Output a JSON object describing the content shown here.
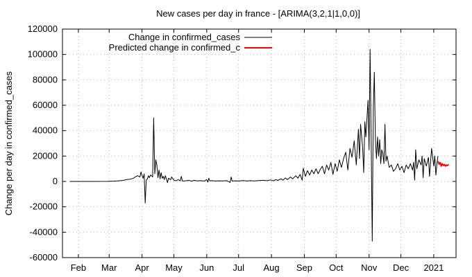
{
  "chart_data": {
    "type": "line",
    "title": "New cases per day in france -  [ARIMA(3,2,1|1,0,0)]",
    "xlabel": "",
    "ylabel": "Change per day in confirmed_cases",
    "ylim": [
      -60000,
      120000
    ],
    "y_ticks": [
      -60000,
      -40000,
      -20000,
      0,
      20000,
      40000,
      60000,
      80000,
      100000,
      120000
    ],
    "x_ticks": [
      "Feb",
      "Mar",
      "Apr",
      "May",
      "Jun",
      "Jul",
      "Aug",
      "Sep",
      "Oct",
      "Nov",
      "Dec",
      "2021"
    ],
    "grid": true,
    "legend_position": "top-left",
    "series": [
      {
        "name": "Change in confirmed_cases",
        "color": "#000000",
        "points": [
          [
            "2020-01-24",
            0
          ],
          [
            "2020-02-15",
            0
          ],
          [
            "2020-02-29",
            50
          ],
          [
            "2020-03-05",
            200
          ],
          [
            "2020-03-10",
            500
          ],
          [
            "2020-03-14",
            800
          ],
          [
            "2020-03-18",
            1500
          ],
          [
            "2020-03-21",
            1800
          ],
          [
            "2020-03-24",
            2500
          ],
          [
            "2020-03-26",
            3800
          ],
          [
            "2020-03-28",
            4500
          ],
          [
            "2020-03-30",
            3500
          ],
          [
            "2020-03-31",
            7500
          ],
          [
            "2020-04-01",
            4800
          ],
          [
            "2020-04-02",
            2500
          ],
          [
            "2020-04-03",
            6000
          ],
          [
            "2020-04-04",
            -17000
          ],
          [
            "2020-04-05",
            1000
          ],
          [
            "2020-04-06",
            2000
          ],
          [
            "2020-04-07",
            4500
          ],
          [
            "2020-04-08",
            3000
          ],
          [
            "2020-04-09",
            5000
          ],
          [
            "2020-04-10",
            4500
          ],
          [
            "2020-04-11",
            3500
          ],
          [
            "2020-04-12",
            50000
          ],
          [
            "2020-04-13",
            6000
          ],
          [
            "2020-04-14",
            17000
          ],
          [
            "2020-04-15",
            13000
          ],
          [
            "2020-04-16",
            3000
          ],
          [
            "2020-04-17",
            9000
          ],
          [
            "2020-04-18",
            2000
          ],
          [
            "2020-04-19",
            7000
          ],
          [
            "2020-04-20",
            2500
          ],
          [
            "2020-04-21",
            4000
          ],
          [
            "2020-04-22",
            1500
          ],
          [
            "2020-04-23",
            4500
          ],
          [
            "2020-04-24",
            2000
          ],
          [
            "2020-04-25",
            -1000
          ],
          [
            "2020-04-26",
            2500
          ],
          [
            "2020-04-28",
            1500
          ],
          [
            "2020-04-29",
            3500
          ],
          [
            "2020-05-01",
            1000
          ],
          [
            "2020-05-03",
            500
          ],
          [
            "2020-05-05",
            1500
          ],
          [
            "2020-05-07",
            500
          ],
          [
            "2020-05-08",
            4000
          ],
          [
            "2020-05-09",
            300
          ],
          [
            "2020-05-12",
            500
          ],
          [
            "2020-05-15",
            800
          ],
          [
            "2020-05-18",
            200
          ],
          [
            "2020-05-20",
            900
          ],
          [
            "2020-05-23",
            400
          ],
          [
            "2020-05-26",
            600
          ],
          [
            "2020-05-30",
            300
          ],
          [
            "2020-06-01",
            1500
          ],
          [
            "2020-06-02",
            -500
          ],
          [
            "2020-06-03",
            2500
          ],
          [
            "2020-06-04",
            400
          ],
          [
            "2020-06-06",
            600
          ],
          [
            "2020-06-09",
            300
          ],
          [
            "2020-06-12",
            500
          ],
          [
            "2020-06-16",
            400
          ],
          [
            "2020-06-20",
            600
          ],
          [
            "2020-06-23",
            -800
          ],
          [
            "2020-06-24",
            3500
          ],
          [
            "2020-06-25",
            300
          ],
          [
            "2020-06-28",
            500
          ],
          [
            "2020-07-02",
            400
          ],
          [
            "2020-07-05",
            700
          ],
          [
            "2020-07-09",
            300
          ],
          [
            "2020-07-12",
            600
          ],
          [
            "2020-07-16",
            400
          ],
          [
            "2020-07-20",
            700
          ],
          [
            "2020-07-24",
            900
          ],
          [
            "2020-07-28",
            600
          ],
          [
            "2020-07-31",
            1200
          ],
          [
            "2020-08-03",
            500
          ],
          [
            "2020-08-05",
            1500
          ],
          [
            "2020-08-07",
            800
          ],
          [
            "2020-08-10",
            2000
          ],
          [
            "2020-08-12",
            1000
          ],
          [
            "2020-08-14",
            2800
          ],
          [
            "2020-08-16",
            1500
          ],
          [
            "2020-08-19",
            3500
          ],
          [
            "2020-08-21",
            2000
          ],
          [
            "2020-08-24",
            4500
          ],
          [
            "2020-08-26",
            2500
          ],
          [
            "2020-08-28",
            5500
          ],
          [
            "2020-08-30",
            1000
          ],
          [
            "2020-08-31",
            10500
          ],
          [
            "2020-09-02",
            4000
          ],
          [
            "2020-09-04",
            8500
          ],
          [
            "2020-09-06",
            5000
          ],
          [
            "2020-09-08",
            9000
          ],
          [
            "2020-09-10",
            6000
          ],
          [
            "2020-09-12",
            10000
          ],
          [
            "2020-09-14",
            6000
          ],
          [
            "2020-09-16",
            9500
          ],
          [
            "2020-09-18",
            12000
          ],
          [
            "2020-09-20",
            6000
          ],
          [
            "2020-09-22",
            13000
          ],
          [
            "2020-09-24",
            9000
          ],
          [
            "2020-09-26",
            15000
          ],
          [
            "2020-09-28",
            5500
          ],
          [
            "2020-09-30",
            14000
          ],
          [
            "2020-10-02",
            8000
          ],
          [
            "2020-10-04",
            17000
          ],
          [
            "2020-10-06",
            11000
          ],
          [
            "2020-10-08",
            18000
          ],
          [
            "2020-10-10",
            23000
          ],
          [
            "2020-10-12",
            9000
          ],
          [
            "2020-10-14",
            26000
          ],
          [
            "2020-10-16",
            19000
          ],
          [
            "2020-10-18",
            32000
          ],
          [
            "2020-10-20",
            13000
          ],
          [
            "2020-10-22",
            41000
          ],
          [
            "2020-10-23",
            18000
          ],
          [
            "2020-10-24",
            45000
          ],
          [
            "2020-10-26",
            26000
          ],
          [
            "2020-10-27",
            7000
          ],
          [
            "2020-10-28",
            47000
          ],
          [
            "2020-10-29",
            35000
          ],
          [
            "2020-10-30",
            49000
          ],
          [
            "2020-10-31",
            64000
          ],
          [
            "2020-11-01",
            25000
          ],
          [
            "2020-11-02",
            104000
          ],
          [
            "2020-11-03",
            35000
          ],
          [
            "2020-11-04",
            -47000
          ],
          [
            "2020-11-05",
            58000
          ],
          [
            "2020-11-06",
            86000
          ],
          [
            "2020-11-07",
            33000
          ],
          [
            "2020-11-08",
            18000
          ],
          [
            "2020-11-09",
            35000
          ],
          [
            "2020-11-10",
            20000
          ],
          [
            "2020-11-11",
            33000
          ],
          [
            "2020-11-12",
            14000
          ],
          [
            "2020-11-13",
            25000
          ],
          [
            "2020-11-14",
            22000
          ],
          [
            "2020-11-15",
            14000
          ],
          [
            "2020-11-16",
            45000
          ],
          [
            "2020-11-17",
            16000
          ],
          [
            "2020-11-18",
            20000
          ],
          [
            "2020-11-20",
            11000
          ],
          [
            "2020-11-22",
            13000
          ],
          [
            "2020-11-24",
            8000
          ],
          [
            "2020-11-26",
            10000
          ],
          [
            "2020-11-28",
            14000
          ],
          [
            "2020-11-30",
            9000
          ],
          [
            "2020-12-02",
            12000
          ],
          [
            "2020-12-04",
            7000
          ],
          [
            "2020-12-06",
            13000
          ],
          [
            "2020-12-08",
            10000
          ],
          [
            "2020-12-10",
            14000
          ],
          [
            "2020-12-12",
            9000
          ],
          [
            "2020-12-13",
            15000
          ],
          [
            "2020-12-14",
            1000
          ],
          [
            "2020-12-15",
            25000
          ],
          [
            "2020-12-16",
            10000
          ],
          [
            "2020-12-18",
            17000
          ],
          [
            "2020-12-20",
            13000
          ],
          [
            "2020-12-21",
            20000
          ],
          [
            "2020-12-22",
            3000
          ],
          [
            "2020-12-23",
            18000
          ],
          [
            "2020-12-25",
            12000
          ],
          [
            "2020-12-27",
            19000
          ],
          [
            "2020-12-28",
            4000
          ],
          [
            "2020-12-30",
            26000
          ],
          [
            "2021-01-01",
            12000
          ],
          [
            "2021-01-02",
            20000
          ],
          [
            "2021-01-03",
            5000
          ],
          [
            "2021-01-04",
            14000
          ],
          [
            "2021-01-05",
            20000
          ]
        ]
      },
      {
        "name": "Predicted change in confirmed_c",
        "color": "#ff0000",
        "points": [
          [
            "2021-01-05",
            16000
          ],
          [
            "2021-01-06",
            13500
          ],
          [
            "2021-01-07",
            15000
          ],
          [
            "2021-01-08",
            12000
          ],
          [
            "2021-01-09",
            14000
          ],
          [
            "2021-01-10",
            12500
          ],
          [
            "2021-01-11",
            13500
          ],
          [
            "2021-01-12",
            12000
          ],
          [
            "2021-01-13",
            13000
          ],
          [
            "2021-01-14",
            12500
          ],
          [
            "2021-01-15",
            13500
          ]
        ]
      }
    ]
  }
}
